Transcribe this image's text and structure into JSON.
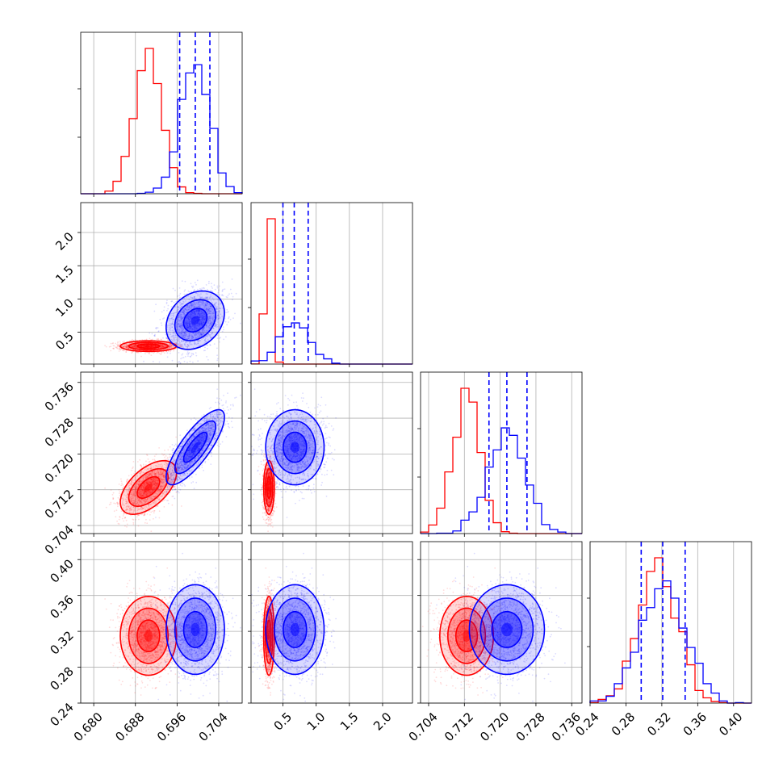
{
  "chart_data": {
    "type": "scatter",
    "subtype": "corner-plot",
    "n_params": 4,
    "series": [
      {
        "name": "",
        "color": "#ff0000",
        "mean": [
          0.6905,
          0.29,
          0.7125,
          0.315
        ],
        "sd": [
          0.0027,
          0.04,
          0.003,
          0.022
        ],
        "corr": [
          [
            1,
            0,
            0.55,
            0
          ],
          [
            0,
            1,
            0,
            0
          ],
          [
            0.55,
            0,
            1,
            0
          ],
          [
            0,
            0,
            0,
            1
          ]
        ]
      },
      {
        "name": "",
        "color": "#0000ff",
        "mean": [
          0.6995,
          0.68,
          0.7215,
          0.322
        ],
        "sd": [
          0.0028,
          0.22,
          0.0042,
          0.025
        ],
        "corr": [
          [
            1,
            0.25,
            0.8,
            0
          ],
          [
            0.25,
            1,
            0,
            0
          ],
          [
            0.8,
            0,
            1,
            0
          ],
          [
            0,
            0,
            0,
            1
          ]
        ]
      }
    ],
    "quantiles": [
      [
        0.6965,
        0.6995,
        0.7023
      ],
      [
        0.5,
        0.67,
        0.88
      ],
      [
        0.7175,
        0.7215,
        0.726
      ],
      [
        0.297,
        0.321,
        0.346
      ]
    ],
    "quantile_color": "#0000ff",
    "axes": [
      {
        "range": [
          0.6775,
          0.7085
        ],
        "ticks": [
          0.68,
          0.688,
          0.696,
          0.704
        ],
        "tick_labels": [
          "0.680",
          "0.688",
          "0.696",
          "0.704"
        ]
      },
      {
        "range": [
          0.02,
          2.45
        ],
        "ticks": [
          0.5,
          1.0,
          1.5,
          2.0
        ],
        "tick_labels": [
          "0.5",
          "1.0",
          "1.5",
          "2.0"
        ]
      },
      {
        "range": [
          0.7022,
          0.7383
        ],
        "ticks": [
          0.704,
          0.712,
          0.72,
          0.728,
          0.736
        ],
        "tick_labels": [
          "0.704",
          "0.712",
          "0.720",
          "0.728",
          "0.736"
        ]
      },
      {
        "range": [
          0.24,
          0.42
        ],
        "ticks": [
          0.24,
          0.28,
          0.32,
          0.36,
          0.4
        ],
        "tick_labels": [
          "0.24",
          "0.28",
          "0.32",
          "0.36",
          "0.40"
        ]
      }
    ],
    "grid": true
  }
}
